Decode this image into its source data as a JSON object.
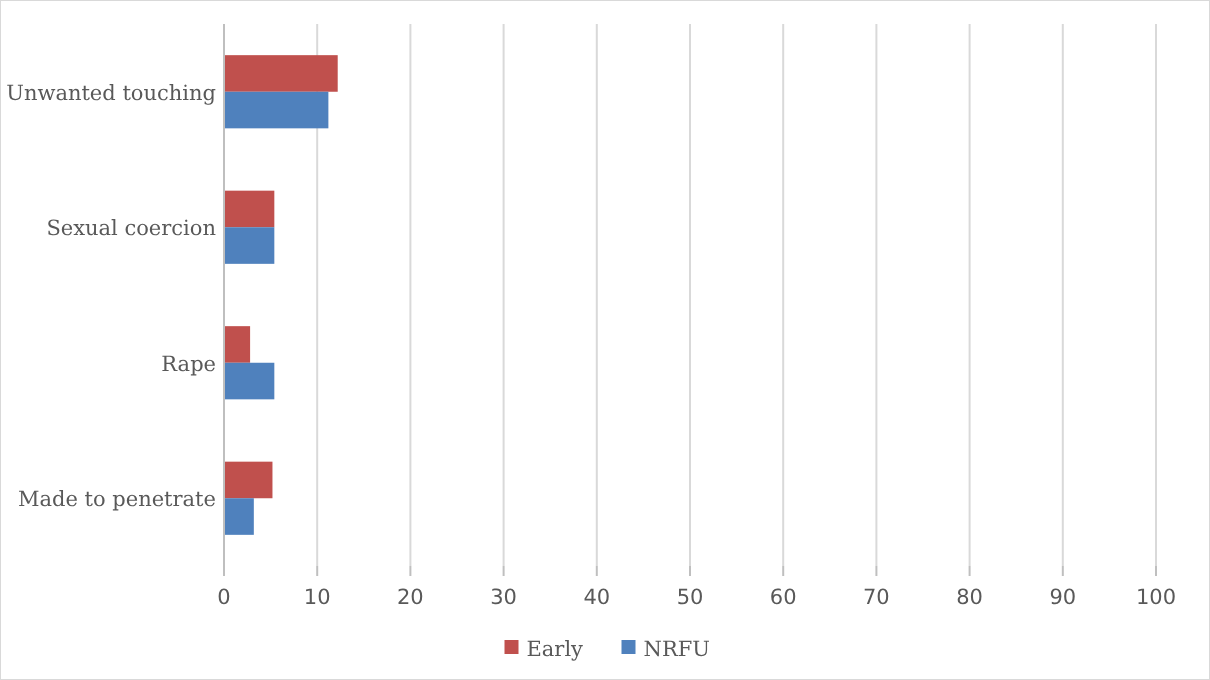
{
  "chart_data": {
    "type": "bar",
    "orientation": "horizontal",
    "categories": [
      "Unwanted touching",
      "Sexual coercion",
      "Rape",
      "Made to penetrate"
    ],
    "series": [
      {
        "name": "Early",
        "color": "#c0504d",
        "values": [
          12.2,
          5.4,
          2.8,
          5.2
        ]
      },
      {
        "name": "NRFU",
        "color": "#4f81bd",
        "values": [
          11.2,
          5.4,
          5.4,
          3.2
        ]
      }
    ],
    "xlim": [
      0,
      100
    ],
    "xticks": [
      0,
      10,
      20,
      30,
      40,
      50,
      60,
      70,
      80,
      90,
      100
    ],
    "grid": "x",
    "legend": "bottom"
  }
}
